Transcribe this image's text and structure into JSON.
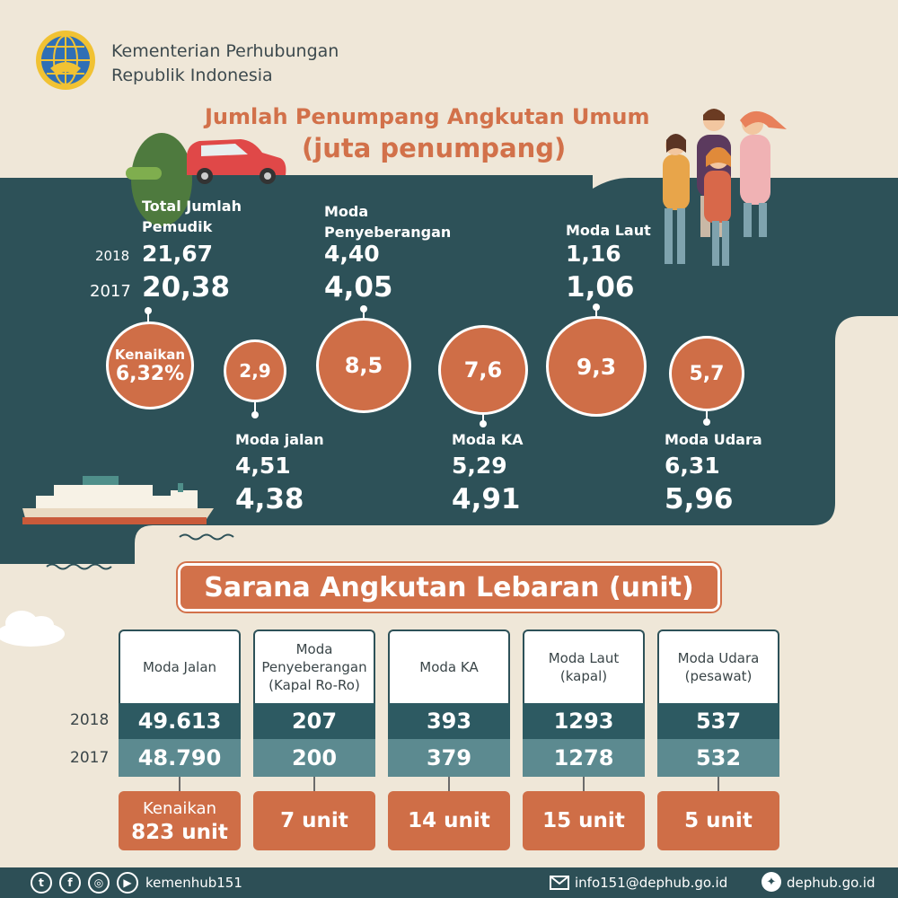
{
  "header": {
    "org_line1": "Kementerian Perhubungan",
    "org_line2": "Republik Indonesia",
    "title": "Jumlah Penumpang Angkutan Umum",
    "subtitle": "(juta penumpang)"
  },
  "passengers": {
    "year_2018": "2018",
    "year_2017": "2017",
    "total": {
      "label_1": "Total Jumlah",
      "label_2": "Pemudik",
      "v2018": "21,67",
      "v2017": "20,38",
      "increase_label": "Kenaikan",
      "increase": "6,32%"
    },
    "penyeberangan": {
      "label_1": "Moda",
      "label_2": "Penyeberangan",
      "v2018": "4,40",
      "v2017": "4,05",
      "increase": "8,5"
    },
    "laut": {
      "label": "Moda Laut",
      "v2018": "1,16",
      "v2017": "1,06",
      "increase": "9,3"
    },
    "jalan": {
      "label": "Moda jalan",
      "v2018": "4,51",
      "v2017": "4,38",
      "increase": "2,9"
    },
    "ka": {
      "label": "Moda KA",
      "v2018": "5,29",
      "v2017": "4,91",
      "increase": "7,6"
    },
    "udara": {
      "label": "Moda Udara",
      "v2018": "6,31",
      "v2017": "5,96",
      "increase": "5,7"
    }
  },
  "sarana": {
    "title": "Sarana Angkutan Lebaran (unit)",
    "year_2018": "2018",
    "year_2017": "2017",
    "columns": [
      {
        "head_1": "Moda Jalan",
        "head_2": "",
        "head_3": "",
        "v2018": "49.613",
        "v2017": "48.790",
        "inc_label": "Kenaikan",
        "inc": "823 unit"
      },
      {
        "head_1": "Moda",
        "head_2": "Penyeberangan",
        "head_3": "(Kapal Ro-Ro)",
        "v2018": "207",
        "v2017": "200",
        "inc_label": "",
        "inc": "7 unit"
      },
      {
        "head_1": "Moda KA",
        "head_2": "",
        "head_3": "",
        "v2018": "393",
        "v2017": "379",
        "inc_label": "",
        "inc": "14 unit"
      },
      {
        "head_1": "Moda Laut",
        "head_2": "(kapal)",
        "head_3": "",
        "v2018": "1293",
        "v2017": "1278",
        "inc_label": "",
        "inc": "15 unit"
      },
      {
        "head_1": "Moda Udara",
        "head_2": "(pesawat)",
        "head_3": "",
        "v2018": "537",
        "v2017": "532",
        "inc_label": "",
        "inc": "5 unit"
      }
    ]
  },
  "footer": {
    "social_handle": "kemenhub151",
    "email": "info151@dephub.go.id",
    "website": "dephub.go.id",
    "icons": [
      "twitter-icon",
      "facebook-icon",
      "instagram-icon",
      "youtube-icon",
      "mail-icon",
      "globe-icon"
    ]
  },
  "colors": {
    "teal": "#2d4f56",
    "orange": "#d2714a",
    "background": "#efe7d8"
  }
}
